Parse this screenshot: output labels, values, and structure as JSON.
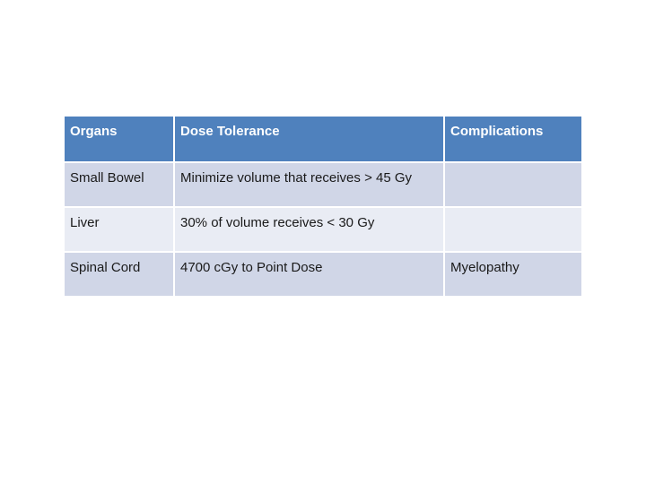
{
  "slide": {
    "background": "#ffffff"
  },
  "colors": {
    "header-bg": "#4F81BD",
    "header-text": "#FFFFFF",
    "band-dark": "#D0D6E7",
    "band-light": "#E9ECF4",
    "body-text": "#1A1A1A",
    "gridline": "#FFFFFF"
  },
  "table": {
    "headers": [
      "Organs",
      "Dose Tolerance",
      "Complications"
    ],
    "rows": [
      {
        "cells": [
          "Small Bowel",
          "Minimize volume that receives > 45 Gy",
          ""
        ]
      },
      {
        "cells": [
          "Liver",
          "30% of volume receives < 30 Gy",
          ""
        ]
      },
      {
        "cells": [
          "Spinal Cord",
          "4700 cGy to Point Dose",
          "Myelopathy"
        ]
      }
    ]
  }
}
